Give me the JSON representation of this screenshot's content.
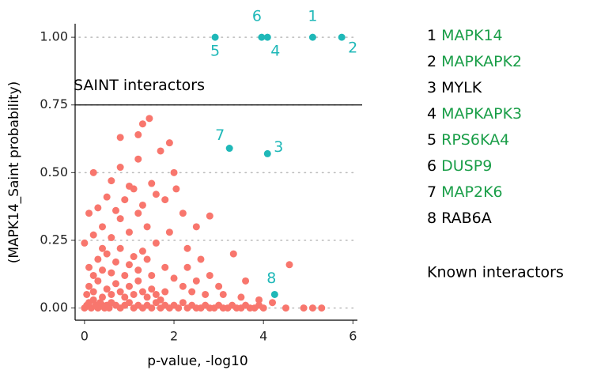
{
  "chart_data": {
    "type": "scatter",
    "x_label": "p-value, -log10",
    "y_label": "(MAPK14_Saint probability)",
    "xlim": [
      -0.21,
      6.1
    ],
    "ylim": [
      -0.045,
      1.05
    ],
    "xticks": [
      0,
      2,
      4,
      6
    ],
    "yticks": [
      {
        "value": 0,
        "label": "0.00"
      },
      {
        "value": 0.25,
        "label": "0.25"
      },
      {
        "value": 0.5,
        "label": "0.50"
      },
      {
        "value": 0.75,
        "label": "0.75"
      },
      {
        "value": 1,
        "label": "1.00"
      }
    ],
    "grid": true,
    "threshold": {
      "value": 0.75,
      "label": "SAINT interactors"
    },
    "series": [
      {
        "color": "#f8766d",
        "x": [
          0,
          0.05,
          0.1,
          0.15,
          0.2,
          0.25,
          0.3,
          0.35,
          0.4,
          0.45,
          0.5,
          0.55,
          0.6,
          0.7,
          0.8,
          0.9,
          1.0,
          1.1,
          1.2,
          1.3,
          1.4,
          1.5,
          1.6,
          1.7,
          1.8,
          1.9,
          2.0,
          2.1,
          2.2,
          2.3,
          2.4,
          2.5,
          2.6,
          2.7,
          2.8,
          2.9,
          3.0,
          3.1,
          3.2,
          3.3,
          3.4,
          3.5,
          3.6,
          3.7,
          3.8,
          3.9,
          4.0,
          4.5,
          4.9,
          5.1,
          5.3,
          0.05,
          0.1,
          0.2,
          0.3,
          0.4,
          0.5,
          0.6,
          0.7,
          0.8,
          0.9,
          1.0,
          1.1,
          1.2,
          1.3,
          1.4,
          1.5,
          1.6,
          1.7,
          1.8,
          0.1,
          0.2,
          0.3,
          0.4,
          0.5,
          0.6,
          0.7,
          0.8,
          0.9,
          1.0,
          1.1,
          1.2,
          1.3,
          1.4,
          1.5,
          1.6,
          1.8,
          2.0,
          2.2,
          2.4,
          0.0,
          0.2,
          0.4,
          0.6,
          0.8,
          1.0,
          1.2,
          1.4,
          0.3,
          0.5,
          0.7,
          0.9,
          1.1,
          1.3,
          1.5,
          0.6,
          0.8,
          1.0,
          1.2,
          1.6,
          1.45,
          1.3,
          0.8,
          1.2,
          1.9,
          0.2,
          2.05,
          2.8,
          2.5,
          2.3,
          2.6,
          2.8,
          3.0,
          3.33,
          3.6,
          4.58,
          2.2,
          1.8,
          2.0,
          1.7,
          2.3,
          2.5,
          2.7,
          3.1,
          3.5,
          3.9,
          4.2,
          0.1,
          0.4,
          1.9
        ],
        "values": [
          0,
          0.01,
          0.02,
          0,
          0.03,
          0.01,
          0,
          0.02,
          0.01,
          0,
          0.01,
          0,
          0.02,
          0.01,
          0,
          0.01,
          0.02,
          0,
          0.01,
          0,
          0.01,
          0,
          0.02,
          0,
          0.01,
          0,
          0.01,
          0,
          0.02,
          0,
          0.01,
          0,
          0,
          0.01,
          0,
          0,
          0.01,
          0,
          0,
          0.01,
          0,
          0,
          0.01,
          0,
          0,
          0.01,
          0,
          0,
          0,
          0,
          0,
          0.05,
          0.08,
          0.06,
          0.1,
          0.04,
          0.07,
          0.05,
          0.09,
          0.06,
          0.04,
          0.08,
          0.05,
          0.1,
          0.06,
          0.04,
          0.07,
          0.05,
          0.03,
          0.06,
          0.15,
          0.12,
          0.18,
          0.14,
          0.2,
          0.13,
          0.17,
          0.22,
          0.12,
          0.16,
          0.19,
          0.14,
          0.21,
          0.18,
          0.12,
          0.24,
          0.15,
          0.11,
          0.08,
          0.06,
          0.24,
          0.27,
          0.3,
          0.26,
          0.33,
          0.28,
          0.35,
          0.3,
          0.37,
          0.41,
          0.36,
          0.4,
          0.44,
          0.38,
          0.46,
          0.47,
          0.52,
          0.45,
          0.55,
          0.42,
          0.7,
          0.68,
          0.63,
          0.64,
          0.61,
          0.5,
          0.44,
          0.34,
          0.3,
          0.22,
          0.18,
          0.12,
          0.08,
          0.2,
          0.1,
          0.16,
          0.35,
          0.4,
          0.5,
          0.58,
          0.15,
          0.1,
          0.05,
          0.05,
          0.04,
          0.03,
          0.02,
          0.35,
          0.22,
          0.28
        ]
      },
      {
        "color": "#1fb8b8",
        "x": [
          5.1,
          5.75,
          4.09,
          4.09,
          2.92,
          3.96,
          3.24,
          4.25
        ],
        "values": [
          1,
          1,
          0.57,
          1,
          1,
          1,
          0.59,
          0.05
        ],
        "labels": [
          "1",
          "2",
          "3",
          "4",
          "5",
          "6",
          "7",
          "8"
        ]
      }
    ],
    "interactors": [
      {
        "name": "MAPK14",
        "known": true
      },
      {
        "name": "MAPKAPK2",
        "known": true
      },
      {
        "name": "MYLK",
        "known": false
      },
      {
        "name": "MAPKAPK3",
        "known": true
      },
      {
        "name": "RPS6KA4",
        "known": true
      },
      {
        "name": "DUSP9",
        "known": true
      },
      {
        "name": "MAP2K6",
        "known": true
      },
      {
        "name": "RAB6A",
        "known": false
      }
    ],
    "known_label": "Known interactors",
    "known_color": "#1a9e48"
  }
}
